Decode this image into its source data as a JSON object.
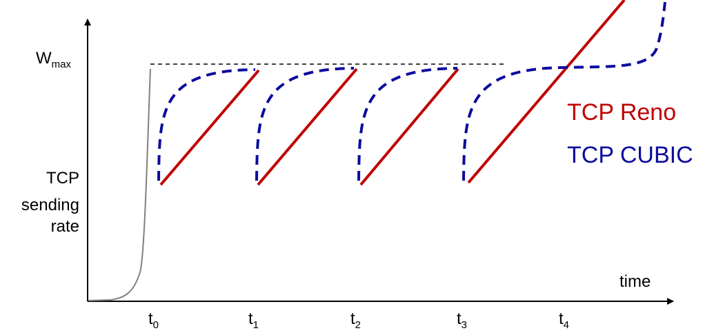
{
  "diagram": {
    "y_label_lines": [
      "TCP",
      "sending",
      "rate"
    ],
    "x_label": "time",
    "wmax": {
      "main": "W",
      "sub": "max"
    },
    "time_marks": [
      {
        "main": "t",
        "sub": "0"
      },
      {
        "main": "t",
        "sub": "1"
      },
      {
        "main": "t",
        "sub": "2"
      },
      {
        "main": "t",
        "sub": "3"
      },
      {
        "main": "t",
        "sub": "4"
      }
    ],
    "legend": [
      {
        "label": "TCP Reno",
        "color": "#c00000"
      },
      {
        "label": "TCP CUBIC",
        "color": "#0b0b9e"
      }
    ],
    "colors": {
      "axis": "#000000",
      "slow_start": "#808080",
      "reno": "#c00000",
      "cubic": "#0b0b9e"
    }
  }
}
